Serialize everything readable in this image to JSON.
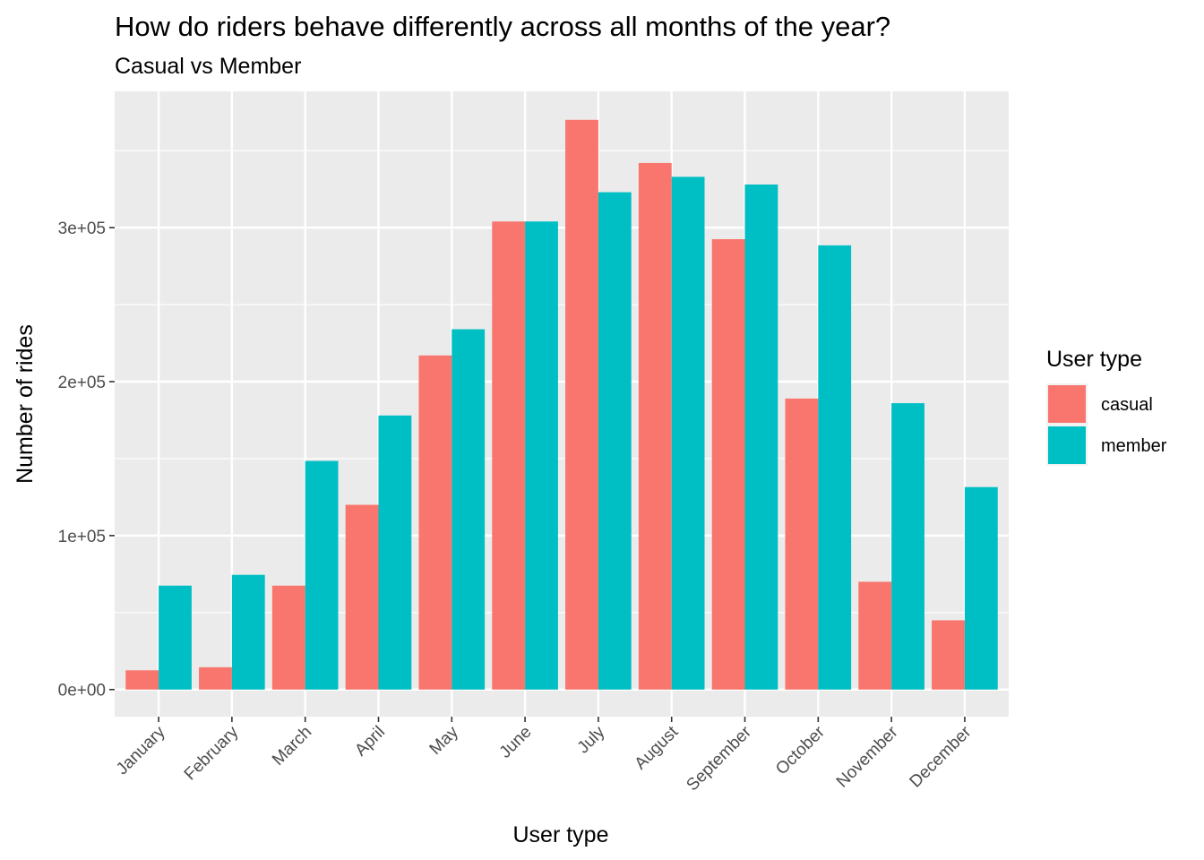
{
  "chart_data": {
    "type": "bar",
    "title": "How do riders behave differently across all months of the year?",
    "subtitle": "Casual vs Member",
    "xlabel": "User type",
    "ylabel": "Number of rides",
    "categories": [
      "January",
      "February",
      "March",
      "April",
      "May",
      "June",
      "July",
      "August",
      "September",
      "October",
      "November",
      "December"
    ],
    "series": [
      {
        "name": "casual",
        "color": "#F8766D",
        "values": [
          12500,
          14500,
          67500,
          120000,
          217000,
          304000,
          370000,
          342000,
          292500,
          189000,
          70000,
          45000
        ]
      },
      {
        "name": "member",
        "color": "#00BFC4",
        "values": [
          67500,
          74500,
          148500,
          178000,
          234000,
          304000,
          323000,
          333000,
          328000,
          288500,
          186000,
          131500
        ]
      }
    ],
    "ylim": [
      -17600,
      388500
    ],
    "y_ticks": [
      0,
      100000,
      200000,
      300000
    ],
    "y_tick_labels": [
      "0e+00",
      "1e+05",
      "2e+05",
      "3e+05"
    ],
    "legend": {
      "title": "User type",
      "position": "right"
    },
    "grid": true,
    "panel_background": "#EBEBEB",
    "x_tick_label_rotation": 45
  }
}
